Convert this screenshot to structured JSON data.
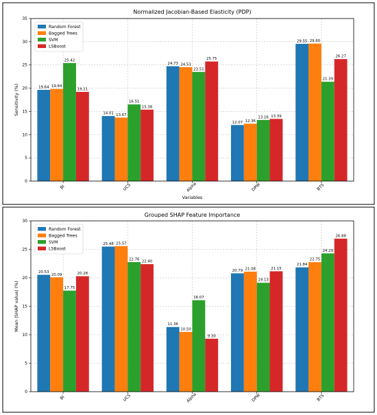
{
  "chart_data": [
    {
      "type": "bar",
      "title": "Normalized Jacobian-Based Elasticity (PDP)",
      "xlabel": "Variables",
      "ylabel": "Sensitivity (%)",
      "ylim": [
        0,
        35
      ],
      "yticks": [
        0,
        5,
        10,
        15,
        20,
        25,
        30,
        35
      ],
      "grid": true,
      "legend_position": "top-left",
      "categories": [
        "BI",
        "UCS",
        "Alpha",
        "DPW",
        "BTS"
      ],
      "series": [
        {
          "name": "Random Forest",
          "color": "#1f77b4",
          "values": [
            19.64,
            14.01,
            24.73,
            12.07,
            29.55
          ]
        },
        {
          "name": "Bagged Trees",
          "color": "#ff7f0e",
          "values": [
            19.84,
            13.67,
            24.53,
            12.36,
            29.6
          ]
        },
        {
          "name": "SVM",
          "color": "#2ca02c",
          "values": [
            25.42,
            16.51,
            23.51,
            13.16,
            21.39
          ]
        },
        {
          "name": "LSBoost",
          "color": "#d62728",
          "values": [
            19.21,
            15.38,
            25.75,
            13.39,
            26.27
          ]
        }
      ]
    },
    {
      "type": "bar",
      "title": "Grouped SHAP Feature Importance",
      "xlabel": "",
      "ylabel": "Mean |SHAP value| (%)",
      "ylim": [
        0,
        30
      ],
      "yticks": [
        0,
        5,
        10,
        15,
        20,
        25,
        30
      ],
      "grid": true,
      "legend_position": "top-left",
      "categories": [
        "BI",
        "UCS",
        "Alpha",
        "DPW",
        "BTS"
      ],
      "series": [
        {
          "name": "Random Forest",
          "color": "#1f77b4",
          "values": [
            20.53,
            25.48,
            11.36,
            20.79,
            21.84
          ]
        },
        {
          "name": "Bagged Trees",
          "color": "#ff7f0e",
          "values": [
            20.09,
            25.57,
            10.5,
            21.08,
            22.75
          ]
        },
        {
          "name": "SVM",
          "color": "#2ca02c",
          "values": [
            17.75,
            22.76,
            16.07,
            19.13,
            24.29
          ]
        },
        {
          "name": "LSBoost",
          "color": "#d62728",
          "values": [
            20.28,
            22.4,
            9.3,
            21.15,
            26.88
          ]
        }
      ]
    }
  ]
}
